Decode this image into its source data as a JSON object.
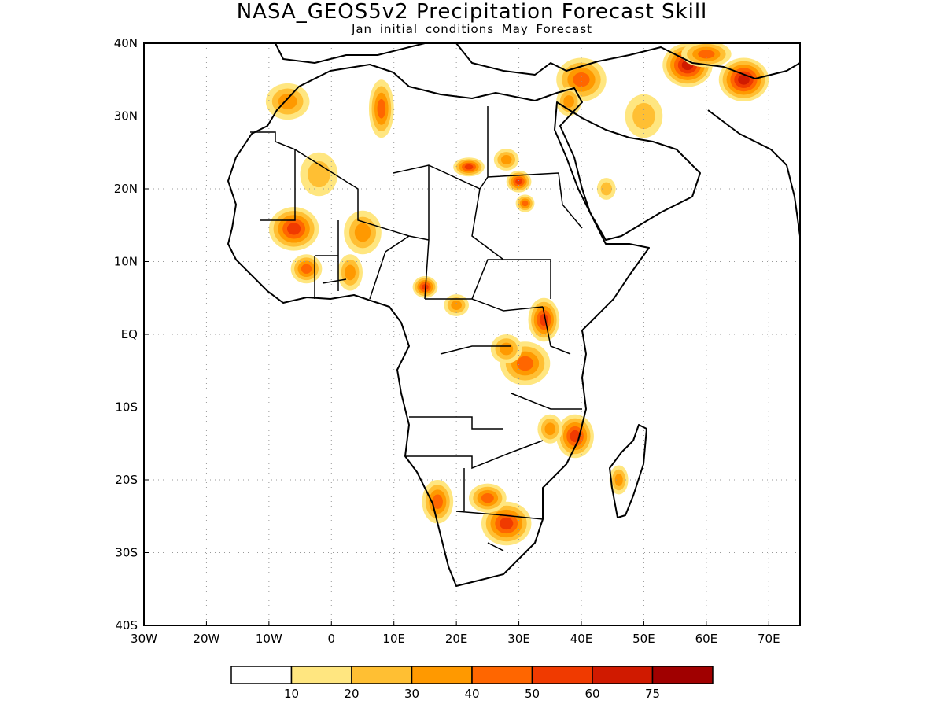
{
  "title": "NASA_GEOS5v2 Precipitation Forecast Skill",
  "subtitle": "Jan initial conditions   May Forecast",
  "map": {
    "lon_range": [
      -30,
      75
    ],
    "lat_range": [
      -40,
      40
    ],
    "x_ticks": [
      "30W",
      "20W",
      "10W",
      "0",
      "10E",
      "20E",
      "30E",
      "40E",
      "50E",
      "60E",
      "70E"
    ],
    "x_tick_values": [
      -30,
      -20,
      -10,
      0,
      10,
      20,
      30,
      40,
      50,
      60,
      70
    ],
    "y_ticks": [
      "40N",
      "30N",
      "20N",
      "10N",
      "EQ",
      "10S",
      "20S",
      "30S",
      "40S"
    ],
    "y_tick_values": [
      40,
      30,
      20,
      10,
      0,
      -10,
      -20,
      -30,
      -40
    ],
    "grid": "dotted"
  },
  "legend": {
    "labels": [
      "10",
      "20",
      "30",
      "40",
      "50",
      "60",
      "75"
    ],
    "colors": [
      "#ffffff",
      "#ffe680",
      "#ffbf33",
      "#ff9900",
      "#ff6600",
      "#f03a00",
      "#d01a00",
      "#a00000"
    ]
  },
  "skill_regions": [
    {
      "lon": -7,
      "lat": 32,
      "rx": 3.5,
      "ry": 2.5,
      "level": 3
    },
    {
      "lon": 8,
      "lat": 31,
      "rx": 2,
      "ry": 4,
      "level": 4
    },
    {
      "lon": -6,
      "lat": 14.5,
      "rx": 4,
      "ry": 3,
      "level": 5
    },
    {
      "lon": -2,
      "lat": 22,
      "rx": 3,
      "ry": 3,
      "level": 2
    },
    {
      "lon": 5,
      "lat": 14,
      "rx": 3,
      "ry": 3,
      "level": 3
    },
    {
      "lon": -4,
      "lat": 9,
      "rx": 2.5,
      "ry": 2,
      "level": 4
    },
    {
      "lon": 3,
      "lat": 8.5,
      "rx": 2,
      "ry": 2.5,
      "level": 3
    },
    {
      "lon": 22,
      "lat": 23,
      "rx": 2.5,
      "ry": 1.3,
      "level": 5
    },
    {
      "lon": 28,
      "lat": 24,
      "rx": 2,
      "ry": 1.5,
      "level": 3
    },
    {
      "lon": 30,
      "lat": 21,
      "rx": 2,
      "ry": 1.5,
      "level": 5
    },
    {
      "lon": 31,
      "lat": 18,
      "rx": 1.5,
      "ry": 1.2,
      "level": 4
    },
    {
      "lon": 15,
      "lat": 6.5,
      "rx": 2,
      "ry": 1.5,
      "level": 5
    },
    {
      "lon": 20,
      "lat": 4,
      "rx": 2,
      "ry": 1.5,
      "level": 3
    },
    {
      "lon": 34,
      "lat": 2,
      "rx": 2.5,
      "ry": 3,
      "level": 5
    },
    {
      "lon": 31,
      "lat": -4,
      "rx": 4,
      "ry": 3,
      "level": 4
    },
    {
      "lon": 28,
      "lat": -2,
      "rx": 2.5,
      "ry": 2,
      "level": 3
    },
    {
      "lon": 39,
      "lat": -14,
      "rx": 3,
      "ry": 3,
      "level": 5
    },
    {
      "lon": 35,
      "lat": -13,
      "rx": 2,
      "ry": 2,
      "level": 3
    },
    {
      "lon": 46,
      "lat": -20,
      "rx": 1.5,
      "ry": 2,
      "level": 3
    },
    {
      "lon": 28,
      "lat": -26,
      "rx": 4,
      "ry": 3,
      "level": 5
    },
    {
      "lon": 25,
      "lat": -22.5,
      "rx": 3,
      "ry": 2,
      "level": 4
    },
    {
      "lon": 17,
      "lat": -23,
      "rx": 2.5,
      "ry": 3,
      "level": 4
    },
    {
      "lon": 40,
      "lat": 35,
      "rx": 4,
      "ry": 3,
      "level": 4
    },
    {
      "lon": 57,
      "lat": 37,
      "rx": 4,
      "ry": 3,
      "level": 6
    },
    {
      "lon": 66,
      "lat": 35,
      "rx": 4,
      "ry": 3,
      "level": 6
    },
    {
      "lon": 50,
      "lat": 30,
      "rx": 3,
      "ry": 3,
      "level": 2
    },
    {
      "lon": 44,
      "lat": 20,
      "rx": 1.5,
      "ry": 1.5,
      "level": 2
    },
    {
      "lon": 38,
      "lat": 32,
      "rx": 2,
      "ry": 2,
      "level": 3
    },
    {
      "lon": 60,
      "lat": 38.5,
      "rx": 4,
      "ry": 1.8,
      "level": 4
    }
  ]
}
